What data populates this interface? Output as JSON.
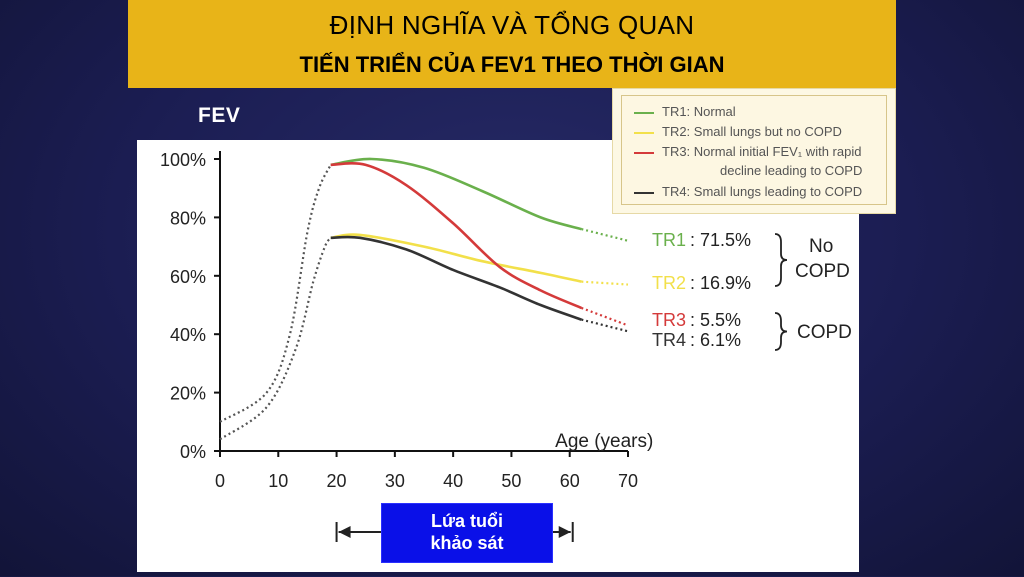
{
  "header": {
    "title": "ĐỊNH NGHĨA VÀ TỔNG QUAN",
    "subtitle": "TIẾN TRIỂN CỦA FEV1 THEO THỜI GIAN"
  },
  "fev_label": "FEV",
  "colors": {
    "header_bg": "#e8b418",
    "background": "#1b1d52",
    "tr1": "#6ab04c",
    "tr2": "#f2e04a",
    "tr3": "#d43a3a",
    "tr4": "#333333",
    "survey_box": "#0a10e8"
  },
  "legend": [
    {
      "label": "TR1: Normal",
      "color_key": "tr1"
    },
    {
      "label": "TR2: Small lungs but no COPD",
      "color_key": "tr2"
    },
    {
      "label": "TR3: Normal initial FEV₁ with rapid",
      "label2": "decline leading to COPD",
      "color_key": "tr3"
    },
    {
      "label": "TR4: Small lungs leading to COPD",
      "color_key": "tr4"
    }
  ],
  "survey_box": {
    "line1": "Lứa tuổi",
    "line2": "khảo sát"
  },
  "chart_data": {
    "type": "line",
    "xlabel": "Age (years)",
    "ylabel": "",
    "xlim": [
      0,
      70
    ],
    "ylim": [
      0,
      100
    ],
    "x_ticks": [
      "0",
      "10",
      "20",
      "30",
      "40",
      "50",
      "60",
      "70"
    ],
    "y_ticks": [
      "0%",
      "20%",
      "40%",
      "60%",
      "80%",
      "100%"
    ],
    "grid": false,
    "series": [
      {
        "name": "TR1",
        "color_key": "tr1",
        "solid": [
          [
            19,
            98
          ],
          [
            26,
            100
          ],
          [
            35,
            97
          ],
          [
            45,
            89
          ],
          [
            55,
            80
          ],
          [
            62,
            76
          ]
        ],
        "dotted": [
          [
            62,
            76
          ],
          [
            70,
            72
          ]
        ],
        "end_label": "TR1",
        "end_value": "71.5%"
      },
      {
        "name": "TR2",
        "color_key": "tr2",
        "solid": [
          [
            19,
            73
          ],
          [
            24,
            74
          ],
          [
            35,
            70
          ],
          [
            45,
            65
          ],
          [
            55,
            61
          ],
          [
            62,
            58
          ]
        ],
        "dotted": [
          [
            62,
            58
          ],
          [
            70,
            57
          ]
        ],
        "end_label": "TR2",
        "end_value": "16.9%"
      },
      {
        "name": "TR3",
        "color_key": "tr3",
        "solid": [
          [
            19,
            98
          ],
          [
            25,
            98
          ],
          [
            32,
            91
          ],
          [
            40,
            78
          ],
          [
            48,
            63
          ],
          [
            55,
            55
          ],
          [
            62,
            49
          ]
        ],
        "dotted": [
          [
            62,
            49
          ],
          [
            70,
            43
          ]
        ],
        "end_label": "TR3",
        "end_value": "5.5%"
      },
      {
        "name": "TR4",
        "color_key": "tr4",
        "solid": [
          [
            19,
            73
          ],
          [
            24,
            73
          ],
          [
            32,
            69
          ],
          [
            40,
            62
          ],
          [
            48,
            56
          ],
          [
            55,
            50
          ],
          [
            62,
            45
          ]
        ],
        "dotted": [
          [
            62,
            45
          ],
          [
            70,
            41
          ]
        ],
        "end_label": "TR4",
        "end_value": "6.1%"
      }
    ],
    "early_dotted": [
      {
        "points": [
          [
            0,
            10
          ],
          [
            8,
            20
          ],
          [
            12,
            40
          ],
          [
            15,
            75
          ],
          [
            17,
            90
          ],
          [
            19,
            98
          ]
        ]
      },
      {
        "points": [
          [
            0,
            4
          ],
          [
            8,
            15
          ],
          [
            13,
            35
          ],
          [
            16,
            58
          ],
          [
            18,
            70
          ],
          [
            19,
            73
          ]
        ]
      }
    ],
    "groups": [
      {
        "label_line1": "No",
        "label_line2": "COPD"
      },
      {
        "label_line1": "COPD"
      }
    ],
    "survey_range": [
      20,
      60
    ]
  }
}
